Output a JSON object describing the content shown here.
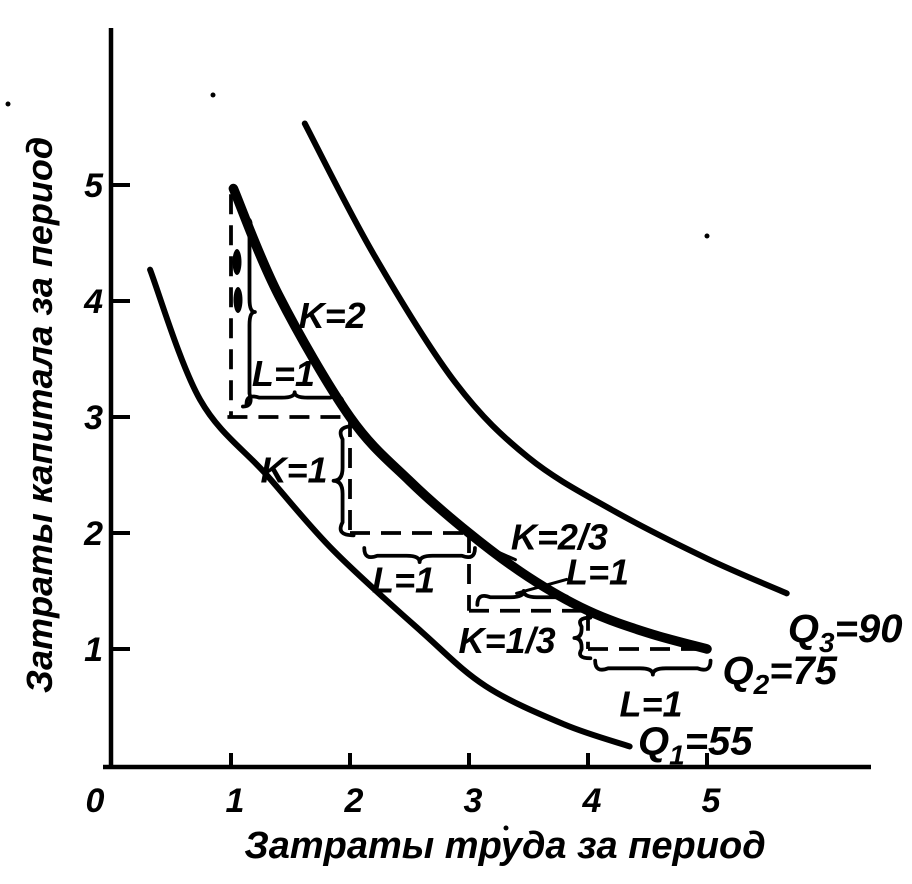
{
  "chart_data": {
    "type": "line",
    "title": "",
    "xlabel": "Затраты труда за период",
    "ylabel": "Затраты капитала за период",
    "origin_label": "0",
    "x_ticks": [
      1,
      2,
      3,
      4,
      5
    ],
    "y_ticks": [
      1,
      2,
      3,
      4,
      5
    ],
    "xlim": [
      0,
      6.4
    ],
    "ylim": [
      0,
      6.35
    ],
    "grid": false,
    "ink": "#000000",
    "background": "#ffffff",
    "series": [
      {
        "name": "Q1",
        "label": {
          "pre": "Q",
          "sub": "1",
          "post": "=55"
        },
        "value": 55,
        "bold": false,
        "points": [
          [
            0.32,
            4.27
          ],
          [
            0.74,
            3.15
          ],
          [
            1.3,
            2.5
          ],
          [
            1.86,
            1.85
          ],
          [
            2.6,
            1.15
          ],
          [
            3.14,
            0.68
          ],
          [
            3.8,
            0.35
          ],
          [
            4.35,
            0.16
          ]
        ],
        "label_pos": [
          4.42,
          0.09
        ]
      },
      {
        "name": "Q2",
        "label": {
          "pre": "Q",
          "sub": "2",
          "post": "=75"
        },
        "value": 75,
        "bold": true,
        "points": [
          [
            1.02,
            4.97
          ],
          [
            1.4,
            4.05
          ],
          [
            2,
            3
          ],
          [
            2.5,
            2.45
          ],
          [
            3,
            2
          ],
          [
            3.5,
            1.62
          ],
          [
            4,
            1.33
          ],
          [
            4.5,
            1.14
          ],
          [
            5,
            1
          ]
        ],
        "label_pos": [
          5.13,
          0.7
        ]
      },
      {
        "name": "Q3",
        "label": {
          "pre": "Q",
          "sub": "3",
          "post": "=90"
        },
        "value": 90,
        "bold": false,
        "points": [
          [
            1.62,
            5.53
          ],
          [
            2.2,
            4.4
          ],
          [
            2.89,
            3.29
          ],
          [
            3.5,
            2.65
          ],
          [
            4.2,
            2.2
          ],
          [
            5,
            1.78
          ],
          [
            5.67,
            1.48
          ]
        ],
        "label_pos": [
          5.68,
          1.06
        ]
      }
    ],
    "staircase_segments": [
      [
        [
          1,
          4.92
        ],
        [
          1,
          3
        ]
      ],
      [
        [
          0.97,
          3
        ],
        [
          2.02,
          3
        ]
      ],
      [
        [
          2,
          3
        ],
        [
          2,
          2
        ]
      ],
      [
        [
          2,
          2
        ],
        [
          3.03,
          2
        ]
      ],
      [
        [
          3,
          2
        ],
        [
          3,
          1.33
        ]
      ],
      [
        [
          3,
          1.33
        ],
        [
          4,
          1.33
        ]
      ],
      [
        [
          4,
          1.33
        ],
        [
          4,
          1
        ]
      ],
      [
        [
          4,
          1
        ],
        [
          5.02,
          1
        ]
      ]
    ],
    "annotations": [
      {
        "text": "K=2",
        "pos": [
          1.85,
          3.87
        ]
      },
      {
        "text": "L=1",
        "pos": [
          1.44,
          3.37
        ]
      },
      {
        "text": "K=1",
        "pos": [
          1.53,
          2.54
        ]
      },
      {
        "text": "L=1",
        "pos": [
          2.45,
          1.59
        ]
      },
      {
        "text": "K=2/3",
        "pos": [
          3.76,
          1.96
        ]
      },
      {
        "text": "L=1",
        "pos": [
          4.08,
          1.66
        ]
      },
      {
        "text": "K=1/3",
        "pos": [
          3.32,
          1.07
        ]
      },
      {
        "text": "L=1",
        "pos": [
          4.53,
          0.52
        ]
      }
    ],
    "braces": [
      {
        "from": [
          1.1,
          4.72
        ],
        "to": [
          1.1,
          3.09
        ],
        "dir": "right",
        "depth": 12
      },
      {
        "from": [
          1.13,
          3.11
        ],
        "to": [
          1.94,
          3.11
        ],
        "dir": "up",
        "depth": 12
      },
      {
        "from": [
          2.03,
          2.92
        ],
        "to": [
          2.03,
          1.98
        ],
        "dir": "left",
        "depth": 20
      },
      {
        "from": [
          2.12,
          1.87
        ],
        "to": [
          3.05,
          1.87
        ],
        "dir": "down",
        "depth": 14
      },
      {
        "from": [
          3.07,
          1.38
        ],
        "to": [
          3.85,
          1.38
        ],
        "dir": "up",
        "depth": 14
      },
      {
        "from": [
          4.02,
          1.27
        ],
        "to": [
          4.02,
          0.92
        ],
        "dir": "left",
        "depth": 16
      },
      {
        "from": [
          4.06,
          0.9
        ],
        "to": [
          5.03,
          0.9
        ],
        "dir": "down",
        "depth": 14
      }
    ],
    "leader_lines": [
      {
        "from": [
          3.39,
          1.77
        ],
        "to": [
          3.06,
          1.92
        ]
      },
      {
        "from": [
          3.82,
          1.6
        ],
        "to": [
          3.4,
          1.48
        ]
      }
    ]
  }
}
